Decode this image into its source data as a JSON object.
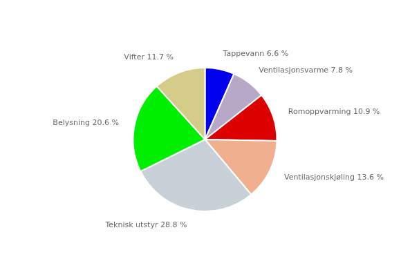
{
  "chart_data": {
    "type": "pie",
    "categories": [
      "Tappevann 6.6 %",
      "Ventilasjonsvarme 7.8 %",
      "Romoppvarming 10.9 %",
      "Ventilasjonskjøling 13.6 %",
      "Teknisk utstyr 28.8 %",
      "Belysning 20.6 %",
      "Vifter 11.7 %"
    ],
    "values": [
      6.6,
      7.8,
      10.9,
      13.6,
      28.8,
      20.6,
      11.7
    ],
    "colors": [
      "#0000EE",
      "#B8A8C8",
      "#DD0000",
      "#F0B090",
      "#C8D0D8",
      "#00EE00",
      "#D4CC88"
    ]
  }
}
